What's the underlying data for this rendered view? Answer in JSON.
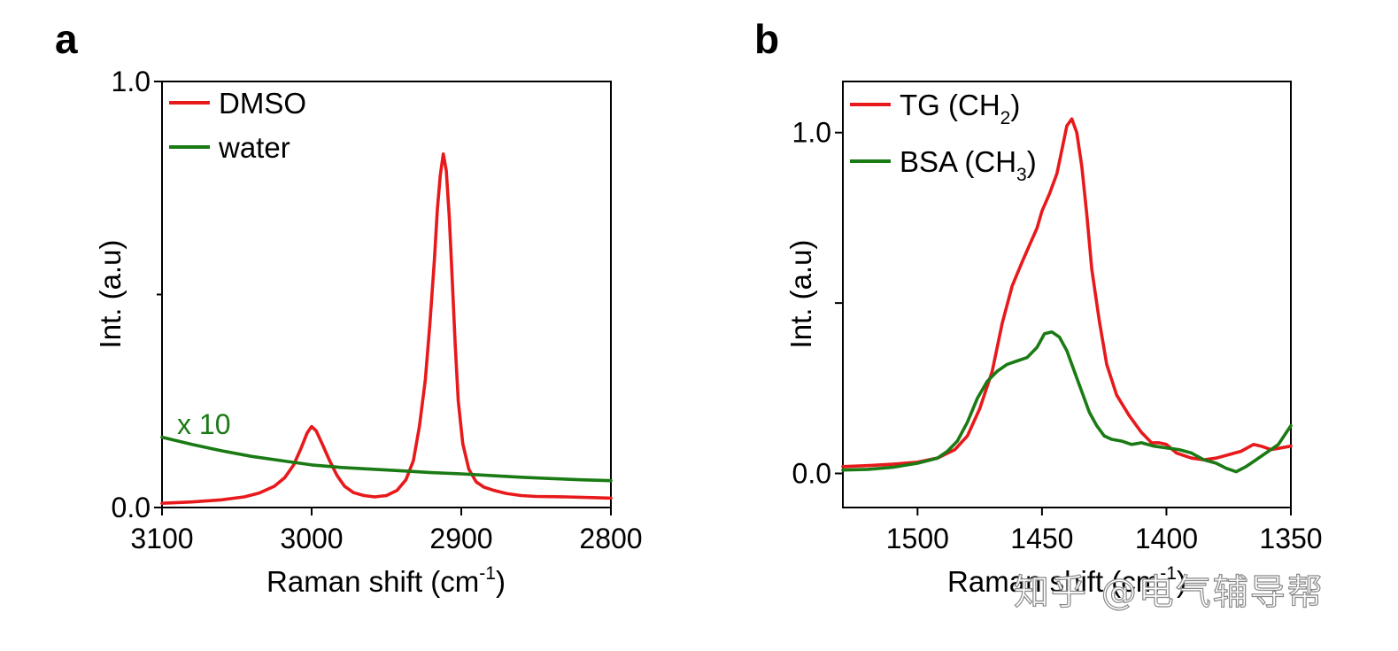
{
  "chart_data": [
    {
      "panel": "a",
      "type": "line",
      "xlabel": "Raman shift (cm",
      "xlabel_sup": "-1",
      "xlabel_close": ")",
      "ylabel": "Int. (a.u)",
      "xlim": [
        3100,
        2800
      ],
      "ylim": [
        0,
        1.0
      ],
      "x_reversed": true,
      "xticks": [
        3100,
        3000,
        2900,
        2800
      ],
      "xtick_labels": [
        "3100",
        "3000",
        "2900",
        "2800"
      ],
      "yticks": [
        0,
        1.0
      ],
      "ytick_labels": [
        "0.0",
        "1.0"
      ],
      "annotation": "x 10",
      "legend_position": "top-left",
      "series": [
        {
          "name": "DMSO",
          "color": "#e8191b",
          "x": [
            3100,
            3080,
            3060,
            3045,
            3035,
            3025,
            3018,
            3012,
            3007,
            3003,
            3000,
            2997,
            2993,
            2988,
            2983,
            2978,
            2972,
            2965,
            2958,
            2950,
            2943,
            2937,
            2932,
            2928,
            2924,
            2921,
            2918,
            2916,
            2914,
            2912,
            2910,
            2908,
            2906,
            2904,
            2902,
            2899,
            2895,
            2890,
            2885,
            2878,
            2870,
            2860,
            2850,
            2830,
            2810,
            2800
          ],
          "y": [
            0.01,
            0.013,
            0.018,
            0.025,
            0.034,
            0.05,
            0.07,
            0.1,
            0.14,
            0.175,
            0.19,
            0.18,
            0.15,
            0.11,
            0.075,
            0.05,
            0.035,
            0.028,
            0.025,
            0.028,
            0.04,
            0.065,
            0.11,
            0.19,
            0.3,
            0.43,
            0.58,
            0.7,
            0.78,
            0.83,
            0.79,
            0.68,
            0.53,
            0.38,
            0.25,
            0.15,
            0.09,
            0.06,
            0.048,
            0.04,
            0.033,
            0.028,
            0.026,
            0.025,
            0.023,
            0.022
          ]
        },
        {
          "name": "water",
          "color": "#1a7a14",
          "x": [
            3100,
            3080,
            3060,
            3040,
            3020,
            3000,
            2980,
            2960,
            2940,
            2920,
            2900,
            2880,
            2860,
            2840,
            2820,
            2800
          ],
          "y": [
            0.165,
            0.148,
            0.133,
            0.12,
            0.11,
            0.1,
            0.094,
            0.09,
            0.086,
            0.082,
            0.079,
            0.075,
            0.071,
            0.068,
            0.065,
            0.063
          ]
        }
      ]
    },
    {
      "panel": "b",
      "type": "line",
      "xlabel": "Raman shift (cm",
      "xlabel_sup": "-1",
      "xlabel_close": ")",
      "ylabel": "Int. (a.u)",
      "xlim": [
        1530,
        1350
      ],
      "ylim": [
        -0.1,
        1.15
      ],
      "x_reversed": true,
      "xticks": [
        1500,
        1450,
        1400,
        1350
      ],
      "xtick_labels": [
        "1500",
        "1450",
        "1400",
        "1350"
      ],
      "yticks": [
        0,
        0.5,
        1.0
      ],
      "ytick_labels": [
        "0.0",
        "",
        "1.0"
      ],
      "legend_position": "top-left",
      "series": [
        {
          "name": "TG (CH",
          "name_sub": "2",
          "name_close": ")",
          "color": "#e8191b",
          "x": [
            1530,
            1520,
            1510,
            1500,
            1492,
            1485,
            1480,
            1475,
            1470,
            1466,
            1462,
            1458,
            1455,
            1452,
            1450,
            1447,
            1444,
            1442,
            1440,
            1438,
            1436,
            1434,
            1432,
            1430,
            1427,
            1424,
            1420,
            1415,
            1410,
            1406,
            1403,
            1400,
            1396,
            1390,
            1385,
            1380,
            1375,
            1370,
            1365,
            1362,
            1358,
            1354,
            1350
          ],
          "y": [
            0.02,
            0.023,
            0.027,
            0.033,
            0.045,
            0.07,
            0.11,
            0.19,
            0.3,
            0.44,
            0.55,
            0.62,
            0.67,
            0.72,
            0.77,
            0.82,
            0.88,
            0.95,
            1.02,
            1.04,
            1.0,
            0.9,
            0.76,
            0.6,
            0.45,
            0.32,
            0.23,
            0.17,
            0.12,
            0.09,
            0.09,
            0.085,
            0.06,
            0.045,
            0.04,
            0.045,
            0.055,
            0.065,
            0.085,
            0.08,
            0.07,
            0.075,
            0.08
          ]
        },
        {
          "name": "BSA (CH",
          "name_sub": "3",
          "name_close": ")",
          "color": "#1a7a14",
          "x": [
            1530,
            1520,
            1510,
            1500,
            1492,
            1488,
            1484,
            1480,
            1476,
            1472,
            1468,
            1464,
            1460,
            1456,
            1452,
            1449,
            1446,
            1443,
            1440,
            1437,
            1434,
            1431,
            1428,
            1425,
            1422,
            1418,
            1414,
            1410,
            1405,
            1400,
            1395,
            1390,
            1385,
            1380,
            1376,
            1372,
            1368,
            1365,
            1360,
            1355,
            1350
          ],
          "y": [
            0.01,
            0.012,
            0.018,
            0.03,
            0.045,
            0.065,
            0.095,
            0.15,
            0.22,
            0.27,
            0.3,
            0.32,
            0.33,
            0.34,
            0.37,
            0.41,
            0.415,
            0.4,
            0.36,
            0.3,
            0.24,
            0.18,
            0.14,
            0.11,
            0.1,
            0.095,
            0.085,
            0.09,
            0.08,
            0.075,
            0.07,
            0.06,
            0.04,
            0.03,
            0.015,
            0.005,
            0.02,
            0.035,
            0.06,
            0.085,
            0.14
          ]
        }
      ]
    }
  ],
  "panels": {
    "a": "a",
    "b": "b"
  },
  "watermark": "知乎 @电气辅导帮"
}
